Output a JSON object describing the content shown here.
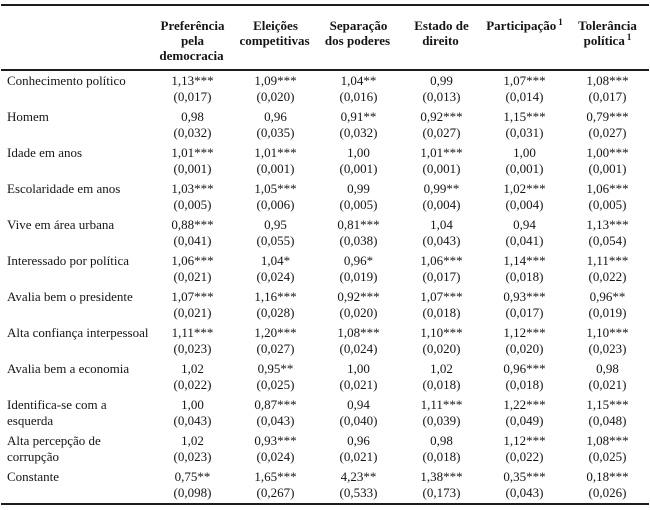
{
  "table": {
    "columns": [
      {
        "label": "Preferência pela democracia",
        "sup": ""
      },
      {
        "label": "Eleições competitivas",
        "sup": ""
      },
      {
        "label": "Separação dos poderes",
        "sup": ""
      },
      {
        "label": "Estado de direito",
        "sup": ""
      },
      {
        "label": "Participação",
        "sup": "1"
      },
      {
        "label": "Tolerância política",
        "sup": "1"
      }
    ],
    "rows": [
      {
        "label": "Conhecimento político",
        "cells": [
          {
            "coef": "1,13***",
            "se": "(0,017)"
          },
          {
            "coef": "1,09***",
            "se": "(0,020)"
          },
          {
            "coef": "1,04**",
            "se": "(0,016)"
          },
          {
            "coef": "0,99",
            "se": "(0,013)"
          },
          {
            "coef": "1,07***",
            "se": "(0,014)"
          },
          {
            "coef": "1,08***",
            "se": "(0,017)"
          }
        ]
      },
      {
        "label": "Homem",
        "cells": [
          {
            "coef": "0,98",
            "se": "(0,032)"
          },
          {
            "coef": "0,96",
            "se": "(0,035)"
          },
          {
            "coef": "0,91**",
            "se": "(0,032)"
          },
          {
            "coef": "0,92***",
            "se": "(0,027)"
          },
          {
            "coef": "1,15***",
            "se": "(0,031)"
          },
          {
            "coef": "0,79***",
            "se": "(0,027)"
          }
        ]
      },
      {
        "label": "Idade em anos",
        "cells": [
          {
            "coef": "1,01***",
            "se": "(0,001)"
          },
          {
            "coef": "1,01***",
            "se": "(0,001)"
          },
          {
            "coef": "1,00",
            "se": "(0,001)"
          },
          {
            "coef": "1,01***",
            "se": "(0,001)"
          },
          {
            "coef": "1,00",
            "se": "(0,001)"
          },
          {
            "coef": "1,00***",
            "se": "(0,001)"
          }
        ]
      },
      {
        "label": "Escolaridade em anos",
        "cells": [
          {
            "coef": "1,03***",
            "se": "(0,005)"
          },
          {
            "coef": "1,05***",
            "se": "(0,006)"
          },
          {
            "coef": "0,99",
            "se": "(0,005)"
          },
          {
            "coef": "0,99**",
            "se": "(0,004)"
          },
          {
            "coef": "1,02***",
            "se": "(0,004)"
          },
          {
            "coef": "1,06***",
            "se": "(0,005)"
          }
        ]
      },
      {
        "label": "Vive em área urbana",
        "cells": [
          {
            "coef": "0,88***",
            "se": "(0,041)"
          },
          {
            "coef": "0,95",
            "se": "(0,055)"
          },
          {
            "coef": "0,81***",
            "se": "(0,038)"
          },
          {
            "coef": "1,04",
            "se": "(0,043)"
          },
          {
            "coef": "0,94",
            "se": "(0,041)"
          },
          {
            "coef": "1,13***",
            "se": "(0,054)"
          }
        ]
      },
      {
        "label": "Interessado por política",
        "cells": [
          {
            "coef": "1,06***",
            "se": "(0,021)"
          },
          {
            "coef": "1,04*",
            "se": "(0,024)"
          },
          {
            "coef": "0,96*",
            "se": "(0,019)"
          },
          {
            "coef": "1,06***",
            "se": "(0,017)"
          },
          {
            "coef": "1,14***",
            "se": "(0,018)"
          },
          {
            "coef": "1,11***",
            "se": "(0,022)"
          }
        ]
      },
      {
        "label": "Avalia bem o presidente",
        "cells": [
          {
            "coef": "1,07***",
            "se": "(0,021)"
          },
          {
            "coef": "1,16***",
            "se": "(0,028)"
          },
          {
            "coef": "0,92***",
            "se": "(0,020)"
          },
          {
            "coef": "1,07***",
            "se": "(0,018)"
          },
          {
            "coef": "0,93***",
            "se": "(0,017)"
          },
          {
            "coef": "0,96**",
            "se": "(0,019)"
          }
        ]
      },
      {
        "label": "Alta confiança interpessoal",
        "cells": [
          {
            "coef": "1,11***",
            "se": "(0,023)"
          },
          {
            "coef": "1,20***",
            "se": "(0,027)"
          },
          {
            "coef": "1,08***",
            "se": "(0,024)"
          },
          {
            "coef": "1,10***",
            "se": "(0,020)"
          },
          {
            "coef": "1,12***",
            "se": "(0,020)"
          },
          {
            "coef": "1,10***",
            "se": "(0,023)"
          }
        ]
      },
      {
        "label": "Avalia bem a economia",
        "cells": [
          {
            "coef": "1,02",
            "se": "(0,022)"
          },
          {
            "coef": "0,95**",
            "se": "(0,025)"
          },
          {
            "coef": "1,00",
            "se": "(0,021)"
          },
          {
            "coef": "1,02",
            "se": "(0,018)"
          },
          {
            "coef": "0,96***",
            "se": "(0,018)"
          },
          {
            "coef": "0,98",
            "se": "(0,021)"
          }
        ]
      },
      {
        "label": "Identifica-se com a esquerda",
        "cells": [
          {
            "coef": "1,00",
            "se": "(0,043)"
          },
          {
            "coef": "0,87***",
            "se": "(0,043)"
          },
          {
            "coef": "0,94",
            "se": "(0,040)"
          },
          {
            "coef": "1,11***",
            "se": "(0,039)"
          },
          {
            "coef": "1,22***",
            "se": "(0,049)"
          },
          {
            "coef": "1,15***",
            "se": "(0,048)"
          }
        ]
      },
      {
        "label": "Alta percepção de corrupção",
        "cells": [
          {
            "coef": "1,02",
            "se": "(0,023)"
          },
          {
            "coef": "0,93***",
            "se": "(0,024)"
          },
          {
            "coef": "0,96",
            "se": "(0,021)"
          },
          {
            "coef": "0,98",
            "se": "(0,018)"
          },
          {
            "coef": "1,12***",
            "se": "(0,022)"
          },
          {
            "coef": "1,08***",
            "se": "(0,025)"
          }
        ]
      },
      {
        "label": "Constante",
        "cells": [
          {
            "coef": "0,75**",
            "se": "(0,098)"
          },
          {
            "coef": "1,65***",
            "se": "(0,267)"
          },
          {
            "coef": "4,23**",
            "se": "(0,533)"
          },
          {
            "coef": "1,38***",
            "se": "(0,173)"
          },
          {
            "coef": "0,35***",
            "se": "(0,043)"
          },
          {
            "coef": "0,18***",
            "se": "(0,026)"
          }
        ]
      }
    ]
  }
}
